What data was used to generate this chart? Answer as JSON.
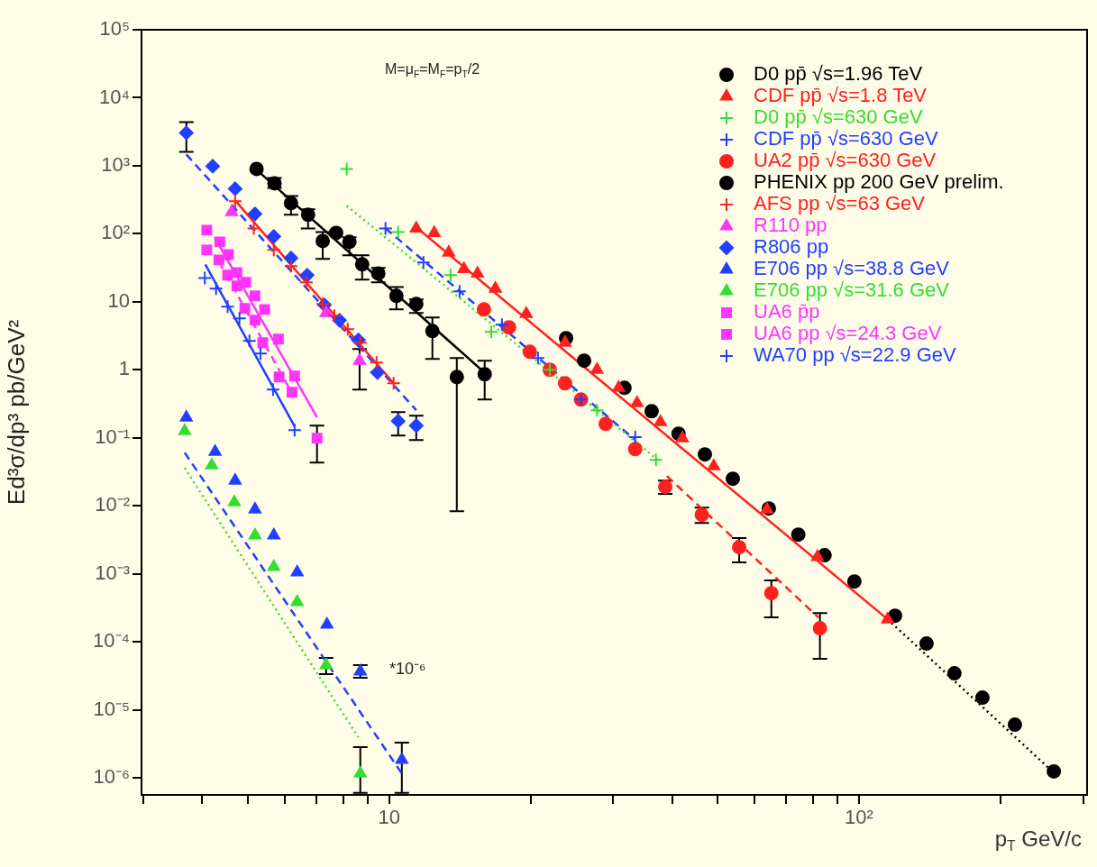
{
  "chart_data": {
    "type": "scatter",
    "xlabel": "p$_{T}$ GeV/c",
    "ylabel": "Ed³σ/dp³ pb/GeV²",
    "annotations": [
      "M=μ$_{F}$=M$_{F}$=p$_{T}$/2",
      "*10⁻⁶"
    ],
    "log": "xy",
    "grid": false,
    "legend": "top right",
    "xlim": [
      2.97,
      306
    ],
    "ylim": [
      5.6e-07,
      100000
    ],
    "xticks": [
      {
        "value": 3,
        "label": null
      },
      {
        "value": 4,
        "label": null
      },
      {
        "value": 5,
        "label": null
      },
      {
        "value": 6,
        "label": null
      },
      {
        "value": 7,
        "label": null
      },
      {
        "value": 8,
        "label": null
      },
      {
        "value": 9,
        "label": null
      },
      10,
      {
        "value": 20,
        "label": null
      },
      {
        "value": 30,
        "label": null
      },
      {
        "value": 40,
        "label": null
      },
      {
        "value": 50,
        "label": null
      },
      {
        "value": 60,
        "label": null
      },
      {
        "value": 70,
        "label": null
      },
      {
        "value": 80,
        "label": null
      },
      {
        "value": 90,
        "label": null
      },
      {
        "value": 100,
        "label": "10²"
      },
      {
        "value": 200,
        "label": null
      },
      {
        "value": 300,
        "label": null
      }
    ],
    "yticks": [
      {
        "value": 1e-06,
        "label": "10⁻⁶"
      },
      {
        "value": 1e-05,
        "label": "10⁻⁵"
      },
      {
        "value": 0.0001,
        "label": "10⁻⁴"
      },
      {
        "value": 0.001,
        "label": "10⁻³"
      },
      {
        "value": 0.01,
        "label": "10⁻²"
      },
      {
        "value": 0.1,
        "label": "10⁻¹"
      },
      1,
      10,
      {
        "value": 100,
        "label": "10²"
      },
      {
        "value": 1000,
        "label": "10³"
      },
      {
        "value": 10000,
        "label": "10⁴"
      },
      {
        "value": 100000,
        "label": "10⁵"
      }
    ],
    "series": [
      {
        "name": "D0 pp̄ √s=1.96 TeV",
        "type": "scatter",
        "color": "#000000",
        "marker": "circle",
        "x": [
          23.8,
          26.0,
          31.7,
          36.2,
          41.3,
          47.0,
          53.9,
          64.3,
          74.3,
          84.5,
          97.8,
          119.4,
          139.3,
          159.7,
          183.2,
          214.8,
          260.0
        ],
        "values": [
          2.91,
          1.36,
          0.543,
          0.246,
          0.115,
          0.0569,
          0.025,
          0.00913,
          0.00377,
          0.00187,
          0.000771,
          0.000242,
          9.42e-05,
          3.44e-05,
          1.51e-05,
          6.04e-06,
          1.24e-06
        ]
      },
      {
        "name": "CDF pp̄ √s=1.8 TeV",
        "type": "scatter",
        "color": "#ff2020",
        "marker": "triangle",
        "x": [
          11.42,
          12.47,
          13.39,
          14.43,
          15.42,
          16.83,
          19.58,
          23.68,
          27.7,
          30.8,
          33.7,
          37.8,
          42.1,
          49.1,
          63.7,
          81.6,
          115.1
        ],
        "values": [
          120,
          103,
          52.7,
          30.4,
          26.1,
          15.6,
          6.62,
          2.5,
          1.0,
          0.543,
          0.324,
          0.171,
          0.0985,
          0.0383,
          0.00885,
          0.00176,
          0.000214
        ]
      },
      {
        "name": "D0 pp̄ √s=630 GeV",
        "type": "scatter",
        "color": "#33dd33",
        "marker": "cross",
        "x": [
          8.12,
          10.45,
          13.51,
          16.49,
          21.97,
          27.7,
          36.98
        ],
        "values": [
          899,
          106,
          24.6,
          3.6,
          1.0,
          0.254,
          0.0474
        ]
      },
      {
        "name": "CDF pp̄ √s=630 GeV",
        "type": "scatter",
        "color": "#2040ff",
        "marker": "cross",
        "x": [
          9.82,
          11.83,
          14.12,
          17.38,
          20.74,
          25.6,
          33.4
        ],
        "values": [
          120,
          37.7,
          14.2,
          4.59,
          1.49,
          0.365,
          0.102
        ]
      },
      {
        "name": "UA2 pp̄ √s=630 GeV",
        "type": "scatter",
        "color": "#ff2020",
        "marker": "circle",
        "x": [
          15.91,
          17.99,
          19.92,
          21.97,
          23.68,
          25.6,
          28.9,
          33.4,
          38.7,
          46.3,
          55.6,
          65.1,
          82.6
        ],
        "values": [
          7.71,
          4.2,
          1.84,
          1.0,
          0.633,
          0.365,
          0.16,
          0.0683,
          0.019,
          0.00738,
          0.00246,
          0.000519,
          0.000158
        ],
        "errors": [
          null,
          null,
          null,
          null,
          null,
          null,
          null,
          null,
          [
            0.0149,
            0.0235
          ],
          [
            0.0056,
            0.00941
          ],
          [
            0.00147,
            0.00334
          ],
          [
            0.000228,
            0.000796
          ],
          [
            5.6e-05,
            0.000265
          ]
        ]
      },
      {
        "name": "PHENIX pp 200 GeV prelim.",
        "type": "scatter",
        "color": "#000000",
        "marker": "circle",
        "x": [
          5.22,
          5.7,
          6.18,
          6.72,
          7.22,
          7.71,
          8.23,
          8.76,
          9.48,
          10.36,
          11.42,
          12.36,
          13.93,
          15.97
        ],
        "values": [
          899,
          552,
          282,
          190,
          78.3,
          103,
          76.0,
          35.5,
          26.1,
          12.2,
          9.27,
          3.71,
          0.783,
          0.859
        ],
        "errors": [
          null,
          [
            473,
            662
          ],
          [
            190,
            360
          ],
          [
            120,
            228
          ],
          [
            42.6,
            106
          ],
          null,
          [
            48.1,
            88.5
          ],
          [
            21.1,
            48.1
          ],
          [
            19.3,
            31.4
          ],
          [
            7.71,
            16.5
          ],
          [
            6.83,
            10.8
          ],
          [
            1.44,
            5.86
          ],
          [
            0.00833,
            1.49
          ],
          [
            0.365,
            1.36
          ]
        ]
      },
      {
        "name": "AFS pp √s=63 GeV",
        "type": "scatter",
        "color": "#ff2020",
        "marker": "cross",
        "x": [
          4.7,
          5.15,
          5.68,
          6.18,
          6.66,
          7.22,
          7.64,
          8.16,
          8.68,
          9.4,
          10.22
        ],
        "values": [
          300,
          120,
          57.8,
          33.4,
          19.3,
          9.27,
          6.23,
          3.95,
          2.5,
          1.28,
          0.633
        ]
      },
      {
        "name": "R110 pp",
        "type": "scatter",
        "color": "#ff33ff",
        "marker": "triangle",
        "x": [
          4.62,
          7.34,
          8.65
        ],
        "values": [
          208,
          6.83,
          1.36
        ],
        "errors": [
          null,
          null,
          [
            0.511,
            2.02
          ]
        ]
      },
      {
        "name": "R806 pp",
        "type": "scatter",
        "color": "#2040ff",
        "marker": "diamond",
        "x": [
          3.7,
          4.21,
          4.7,
          5.18,
          5.68,
          6.18,
          6.69,
          7.28,
          7.84,
          8.6,
          9.44,
          10.45,
          11.42
        ],
        "values": [
          3043,
          985,
          459,
          196,
          91.3,
          43.9,
          24.6,
          8.99,
          5.35,
          2.74,
          0.912,
          0.176,
          0.151
        ],
        "errors": [
          [
            1604,
            4388
          ],
          null,
          null,
          null,
          null,
          null,
          null,
          null,
          null,
          null,
          null,
          [
            0.108,
            0.238
          ],
          [
            0.0927,
            0.211
          ]
        ]
      },
      {
        "name": "E706 pp √s=38.8 GeV",
        "type": "scatter",
        "color": "#2040ff",
        "marker": "triangle",
        "x": [
          3.7,
          4.26,
          4.7,
          5.18,
          5.68,
          6.37,
          7.37,
          8.68,
          10.64
        ],
        "values": [
          0.199,
          0.0623,
          0.0235,
          0.00885,
          0.00366,
          0.00105,
          0.000179,
          3.66e-05,
          1.84e-06
        ],
        "errors": [
          null,
          null,
          null,
          null,
          null,
          null,
          null,
          [
            2.95e-05,
            4.53e-05
          ],
          [
            6e-07,
            3.29e-06
          ]
        ]
      },
      {
        "name": "E706 pp √s=31.6 GeV",
        "type": "scatter",
        "color": "#33dd33",
        "marker": "triangle",
        "x": [
          3.67,
          4.19,
          4.68,
          5.18,
          5.68,
          6.37,
          7.34,
          8.68
        ],
        "values": [
          0.126,
          0.0394,
          0.0113,
          0.00366,
          0.00126,
          0.000383,
          4.53e-05,
          1.16e-06
        ],
        "errors": [
          null,
          null,
          null,
          null,
          null,
          null,
          [
            3.33e-05,
            5.78e-05
          ],
          [
            6e-07,
            2.82e-06
          ]
        ]
      },
      {
        "name": "UA6 p̄p",
        "type": "scatter",
        "color": "#ff33ff",
        "marker": "square",
        "x": [
          4.09,
          4.36,
          4.55,
          4.74,
          4.95,
          5.18,
          5.43,
          5.81,
          6.29,
          7.02
        ],
        "values": [
          113,
          76.0,
          49.6,
          26.9,
          19.3,
          12.2,
          7.71,
          2.82,
          0.808,
          0.0985
        ],
        "errors": [
          null,
          null,
          null,
          null,
          null,
          null,
          null,
          null,
          null,
          [
            0.0432,
            0.151
          ]
        ]
      },
      {
        "name": "UA6 pp √s=24.3 GeV",
        "type": "scatter",
        "color": "#ff33ff",
        "marker": "square",
        "x": [
          4.09,
          4.34,
          4.53,
          4.74,
          4.93,
          5.18,
          5.38,
          5.83,
          6.21
        ],
        "values": [
          57.8,
          41.3,
          24.6,
          17.1,
          7.96,
          5.35,
          2.5,
          0.783,
          0.467
        ]
      },
      {
        "name": "WA70 pp √s=22.9 GeV",
        "type": "scatter",
        "color": "#2040ff",
        "marker": "cross",
        "x": [
          4.05,
          4.28,
          4.53,
          4.8,
          5.04,
          5.32,
          5.66,
          6.29
        ],
        "values": [
          22.4,
          15.6,
          8.46,
          5.69,
          2.65,
          1.73,
          0.511,
          0.13
        ]
      },
      {
        "type": "line",
        "color": "#ff2020",
        "line_style": "solid",
        "x": [
          11.32,
          115.1
        ],
        "values": [
          131,
          0.000214
        ]
      },
      {
        "type": "line",
        "color": "#000000",
        "line_style": "dotted",
        "x": [
          115.1,
          263
        ],
        "values": [
          0.000214,
          1.1e-06
        ]
      },
      {
        "type": "line",
        "color": "#ff2020",
        "line_style": "dashed",
        "x": [
          39.0,
          82.0
        ],
        "values": [
          0.0274,
          0.000228
        ]
      },
      {
        "type": "line",
        "color": "#33dd33",
        "line_style": "dotted",
        "x": [
          8.12,
          37.3
        ],
        "values": [
          258,
          0.0474
        ]
      },
      {
        "type": "line",
        "color": "#2040ff",
        "line_style": "dashed",
        "x": [
          9.82,
          33.4
        ],
        "values": [
          120,
          0.0927
        ]
      },
      {
        "type": "line",
        "color": "#000000",
        "line_style": "solid",
        "x": [
          5.22,
          16.1
        ],
        "values": [
          871,
          0.859
        ]
      },
      {
        "type": "line",
        "color": "#ff2020",
        "line_style": "solid",
        "x": [
          4.7,
          10.22
        ],
        "values": [
          309,
          0.633
        ]
      },
      {
        "type": "line",
        "color": "#2040ff",
        "line_style": "dashed",
        "x": [
          3.7,
          11.42
        ],
        "values": [
          1464,
          0.254
        ]
      },
      {
        "type": "line",
        "color": "#ff33ff",
        "line_style": "solid",
        "x": [
          4.25,
          7.02
        ],
        "values": [
          88.5,
          0.199
        ]
      },
      {
        "type": "line",
        "color": "#ff33ff",
        "line_style": "dashed",
        "x": [
          4.34,
          6.15
        ],
        "values": [
          38.8,
          0.511
        ]
      },
      {
        "type": "line",
        "color": "#2040ff",
        "line_style": "solid",
        "x": [
          4.06,
          6.29
        ],
        "values": [
          35.5,
          0.147
        ]
      },
      {
        "type": "line",
        "color": "#2040ff",
        "line_style": "dashed",
        "x": [
          3.67,
          10.69
        ],
        "values": [
          0.0604,
          1.1e-06
        ]
      },
      {
        "type": "line",
        "color": "#33dd33",
        "line_style": "dotted",
        "x": [
          3.67,
          8.6
        ],
        "values": [
          0.036,
          3.94e-06
        ]
      }
    ]
  }
}
